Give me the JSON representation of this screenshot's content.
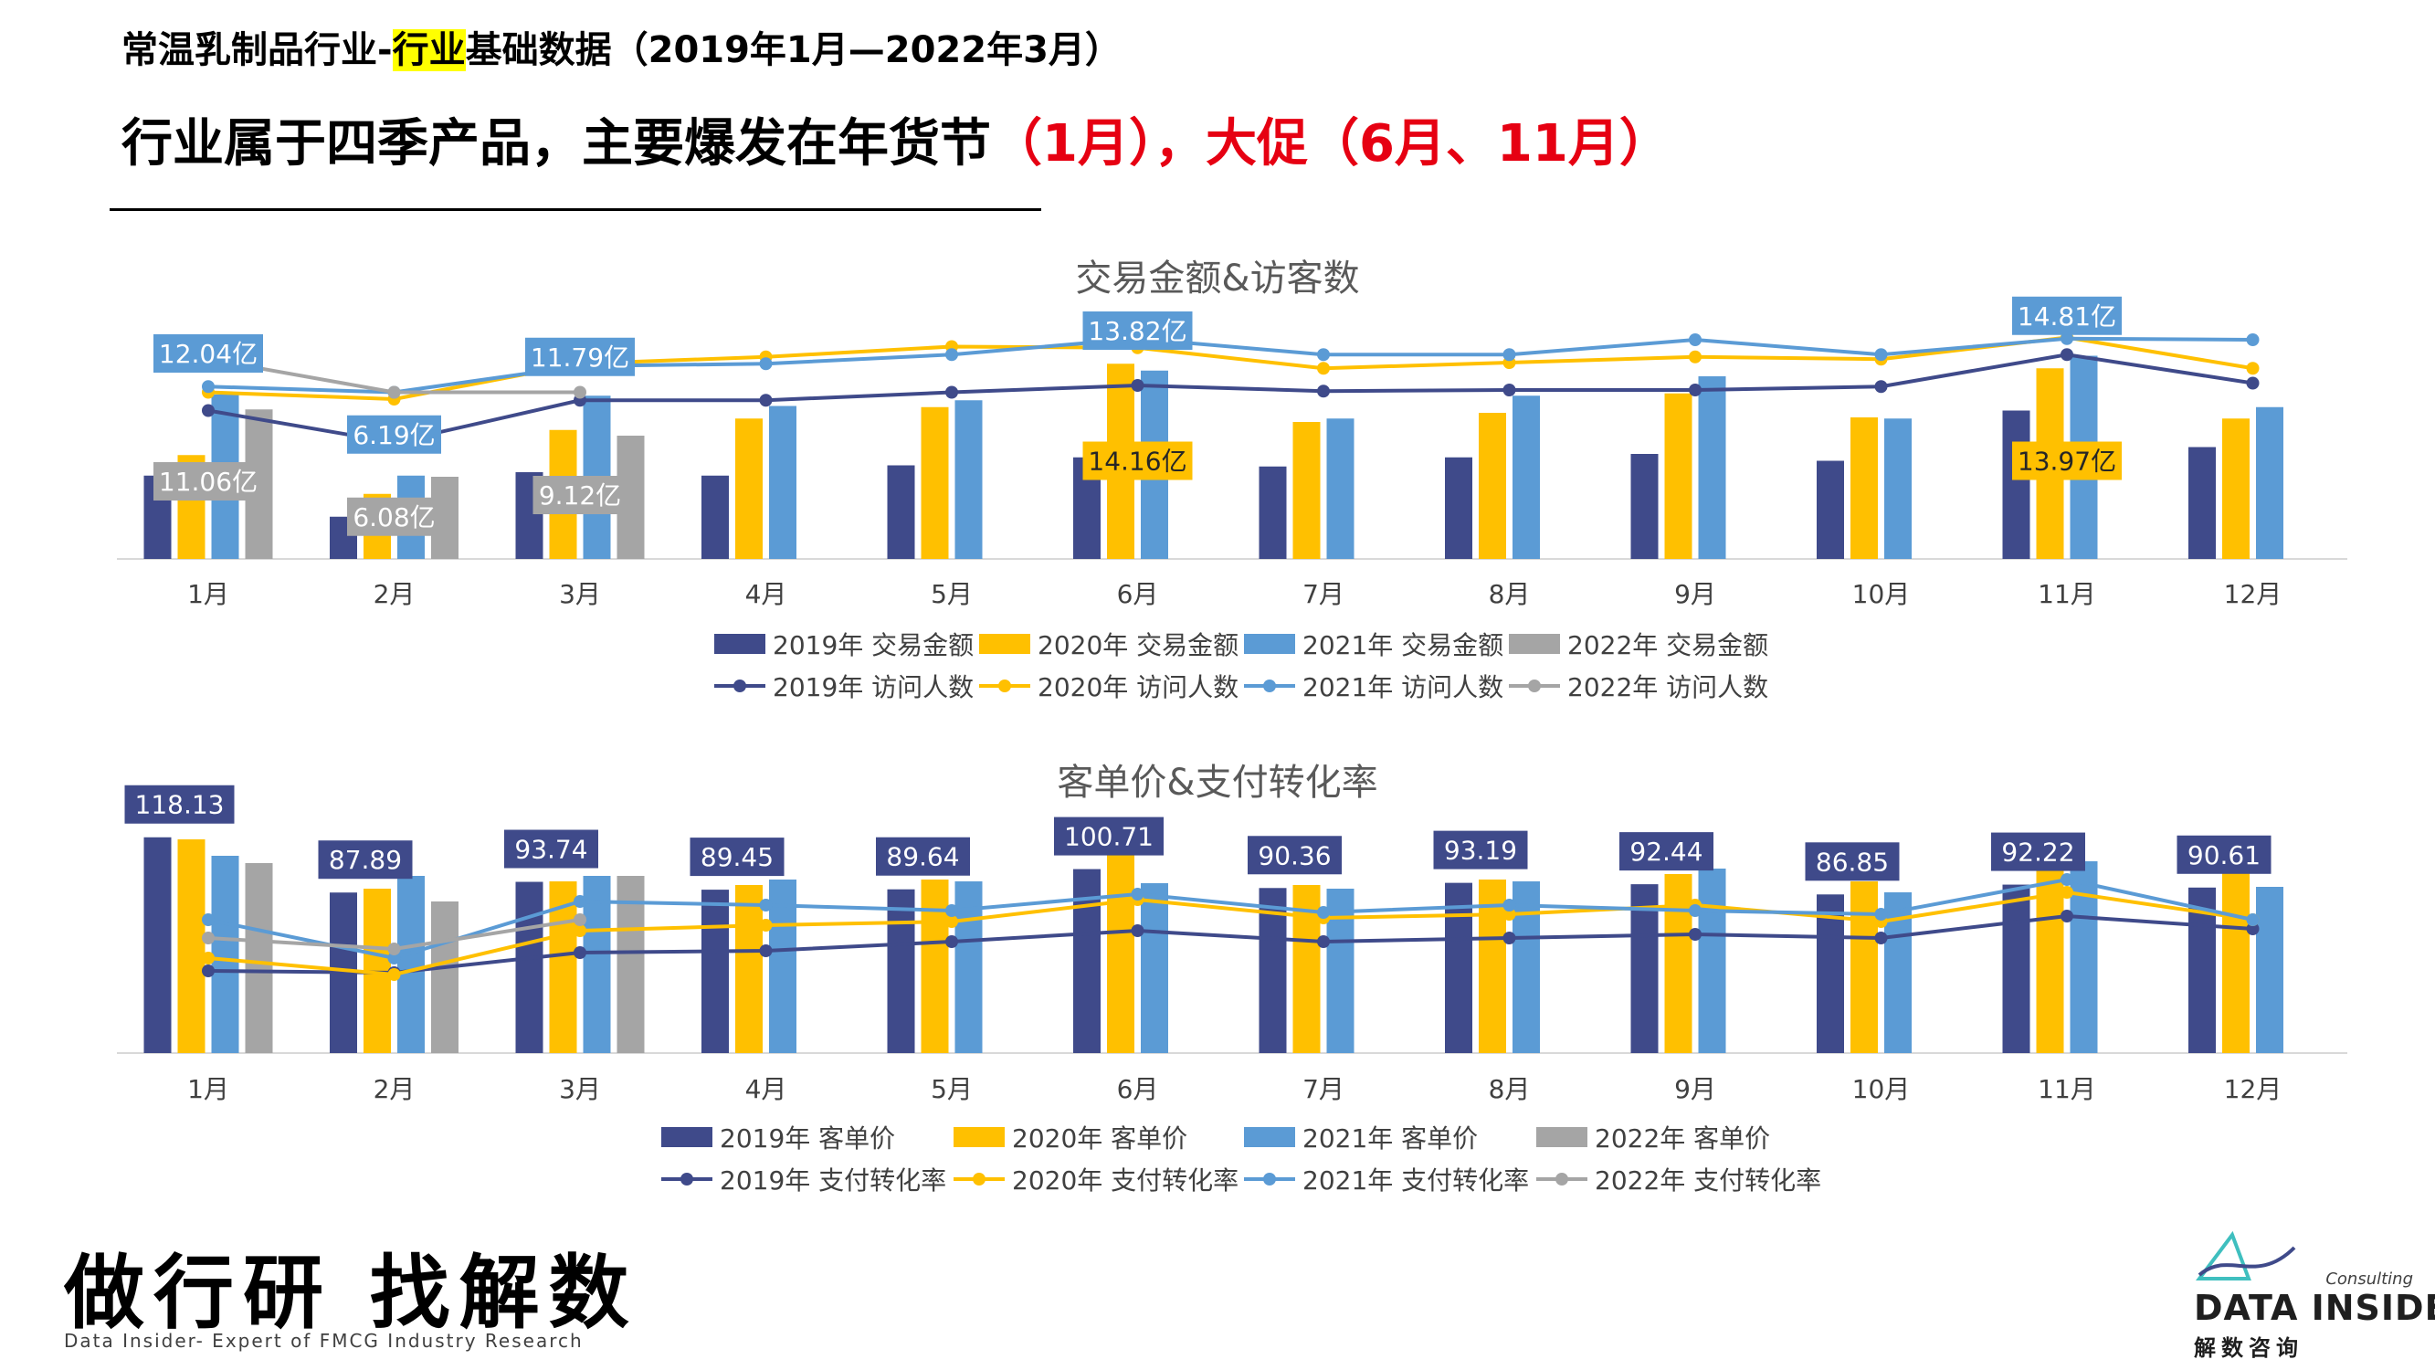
{
  "header": {
    "line1_pre": "常温乳制品行业-",
    "line1_hl": "行业",
    "line1_post": "基础数据（2019年1月—2022年3月）",
    "line2_black": "行业属于四季产品，主要爆发在年货节",
    "line2_red": "（1月），大促（6月、11月）"
  },
  "colors": {
    "y2019": "#3f4a8a",
    "y2020": "#ffc000",
    "y2021": "#5b9bd5",
    "y2022": "#a5a5a5",
    "red": "#e60012"
  },
  "chart_data": [
    {
      "type": "bar",
      "title": "交易金额&访客数",
      "categories": [
        "1月",
        "2月",
        "3月",
        "4月",
        "5月",
        "6月",
        "7月",
        "8月",
        "9月",
        "10月",
        "11月",
        "12月"
      ],
      "series": [
        {
          "name": "2019年 交易金额",
          "kind": "bar",
          "color": "#3f4a8a",
          "values": [
            7.3,
            3.7,
            7.6,
            7.3,
            8.2,
            8.9,
            8.1,
            8.9,
            9.2,
            8.6,
            13.0,
            9.8
          ]
        },
        {
          "name": "2020年 交易金额",
          "kind": "bar",
          "color": "#ffc000",
          "values": [
            9.1,
            5.7,
            11.3,
            12.3,
            13.3,
            17.1,
            12.0,
            12.8,
            14.5,
            12.4,
            16.7,
            12.3
          ]
        },
        {
          "name": "2021年 交易金额",
          "kind": "bar",
          "color": "#5b9bd5",
          "values": [
            14.4,
            7.3,
            14.3,
            13.4,
            13.9,
            16.5,
            12.3,
            14.3,
            16.0,
            12.3,
            17.8,
            13.3
          ]
        },
        {
          "name": "2022年 交易金额",
          "kind": "bar",
          "color": "#a5a5a5",
          "values": [
            13.1,
            7.2,
            10.8,
            null,
            null,
            null,
            null,
            null,
            null,
            null,
            null,
            null
          ]
        },
        {
          "name": "2019年 访问人数",
          "kind": "line",
          "color": "#3f4a8a",
          "values": [
            13.0,
            10.2,
            13.9,
            13.9,
            14.6,
            15.2,
            14.7,
            14.8,
            14.8,
            15.1,
            17.9,
            15.4
          ]
        },
        {
          "name": "2020年 访问人数",
          "kind": "line",
          "color": "#ffc000",
          "values": [
            14.6,
            14.0,
            17.1,
            17.7,
            18.6,
            18.5,
            16.7,
            17.2,
            17.7,
            17.5,
            19.4,
            16.7
          ]
        },
        {
          "name": "2021年 访问人数",
          "kind": "line",
          "color": "#5b9bd5",
          "values": [
            15.1,
            14.6,
            16.9,
            17.1,
            17.9,
            19.3,
            17.9,
            17.9,
            19.2,
            17.9,
            19.3,
            19.2
          ]
        },
        {
          "name": "2022年 访问人数",
          "kind": "line",
          "color": "#a5a5a5",
          "values": [
            17.5,
            14.6,
            14.6,
            null,
            null,
            null,
            null,
            null,
            null,
            null,
            null,
            null
          ]
        }
      ],
      "data_labels": [
        {
          "text": "12.04亿",
          "color": "#5b9bd5",
          "cat": 0,
          "v": 18.0
        },
        {
          "text": "11.06亿",
          "color": "#a5a5a5",
          "cat": 0,
          "v": 6.8
        },
        {
          "text": "6.19亿",
          "color": "#5b9bd5",
          "cat": 1,
          "v": 10.9
        },
        {
          "text": "6.08亿",
          "color": "#a5a5a5",
          "cat": 1,
          "v": 3.7
        },
        {
          "text": "11.79亿",
          "color": "#5b9bd5",
          "cat": 2,
          "v": 17.7
        },
        {
          "text": "9.12亿",
          "color": "#a5a5a5",
          "cat": 2,
          "v": 5.6
        },
        {
          "text": "13.82亿",
          "color": "#5b9bd5",
          "cat": 5,
          "v": 20.0
        },
        {
          "text": "14.16亿",
          "color": "#ffc000",
          "cat": 5,
          "v": 8.6
        },
        {
          "text": "14.81亿",
          "color": "#5b9bd5",
          "cat": 10,
          "v": 21.3
        },
        {
          "text": "13.97亿",
          "color": "#ffc000",
          "cat": 10,
          "v": 8.6
        }
      ],
      "ylim": [
        0,
        24
      ]
    },
    {
      "type": "bar",
      "title": "客单价&支付转化率",
      "categories": [
        "1月",
        "2月",
        "3月",
        "4月",
        "5月",
        "6月",
        "7月",
        "8月",
        "9月",
        "10月",
        "11月",
        "12月"
      ],
      "series": [
        {
          "name": "2019年 客单价",
          "kind": "bar",
          "color": "#3f4a8a",
          "values": [
            118.13,
            87.89,
            93.74,
            89.45,
            89.64,
            100.71,
            90.36,
            93.19,
            92.44,
            86.85,
            92.22,
            90.61
          ]
        },
        {
          "name": "2020年 客单价",
          "kind": "bar",
          "color": "#ffc000",
          "values": [
            117,
            90,
            94,
            92,
            95,
            111,
            92,
            95,
            98,
            94,
            100,
            100
          ]
        },
        {
          "name": "2021年 客单价",
          "kind": "bar",
          "color": "#5b9bd5",
          "values": [
            108,
            97,
            97,
            95,
            94,
            93,
            90,
            94,
            101,
            88,
            105,
            91
          ]
        },
        {
          "name": "2022年 客单价",
          "kind": "bar",
          "color": "#a5a5a5",
          "values": [
            104,
            83,
            97,
            null,
            null,
            null,
            null,
            null,
            null,
            null,
            null,
            null
          ]
        },
        {
          "name": "2019年 支付转化率",
          "kind": "line",
          "color": "#3f4a8a",
          "values": [
            45,
            44,
            55,
            56,
            61,
            67,
            61,
            63,
            65,
            63,
            75,
            68
          ]
        },
        {
          "name": "2020年 支付转化率",
          "kind": "line",
          "color": "#ffc000",
          "values": [
            52,
            43,
            67,
            70,
            72,
            84,
            74,
            76,
            81,
            72,
            88,
            73
          ]
        },
        {
          "name": "2021年 支付转化率",
          "kind": "line",
          "color": "#5b9bd5",
          "values": [
            73,
            52,
            83,
            81,
            78,
            87,
            77,
            81,
            78,
            76,
            95,
            73
          ]
        },
        {
          "name": "2022年 支付转化率",
          "kind": "line",
          "color": "#a5a5a5",
          "values": [
            63,
            57,
            73,
            null,
            null,
            null,
            null,
            null,
            null,
            null,
            null,
            null
          ]
        }
      ],
      "ylim": [
        0,
        125
      ]
    }
  ],
  "footer": {
    "slogan": "做行研 找解数",
    "subtitle": "Data Insider- Expert of FMCG Industry Research",
    "logo_consulting": "Consulting",
    "logo_brand": "DATA INSIDER",
    "logo_cn": "解数咨询"
  }
}
